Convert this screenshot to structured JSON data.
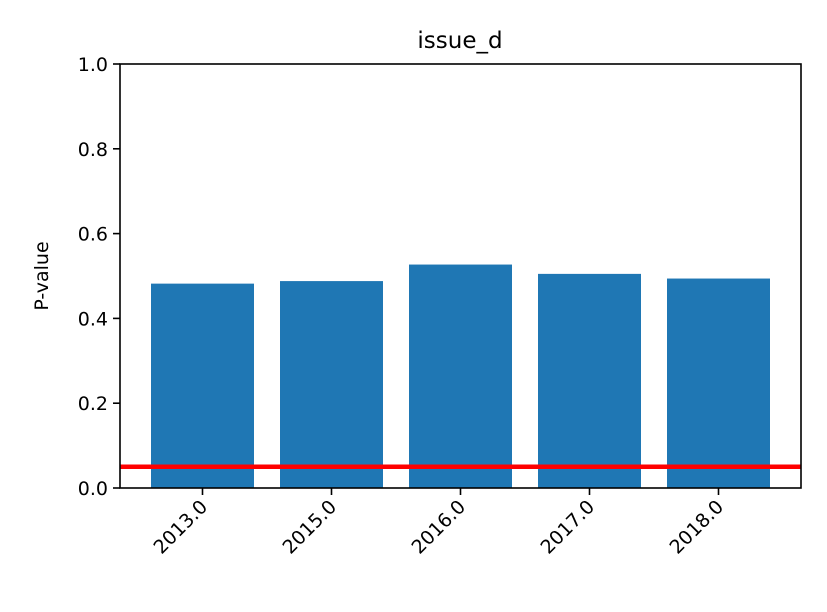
{
  "chart_data": {
    "type": "bar",
    "title": "issue_d",
    "xlabel": "",
    "ylabel": "P-value",
    "categories": [
      "2013.0",
      "2015.0",
      "2016.0",
      "2017.0",
      "2018.0"
    ],
    "series": [
      {
        "values": [
          0.482,
          0.488,
          0.527,
          0.505,
          0.494
        ]
      }
    ],
    "ylim": [
      0.0,
      1.0
    ],
    "yticks": [
      "0.0",
      "0.2",
      "0.4",
      "0.6",
      "0.8",
      "1.0"
    ],
    "reference_line": {
      "y": 0.05,
      "color": "#ff0000"
    },
    "bar_color": "#1f77b4",
    "grid": false,
    "legend": "none"
  }
}
